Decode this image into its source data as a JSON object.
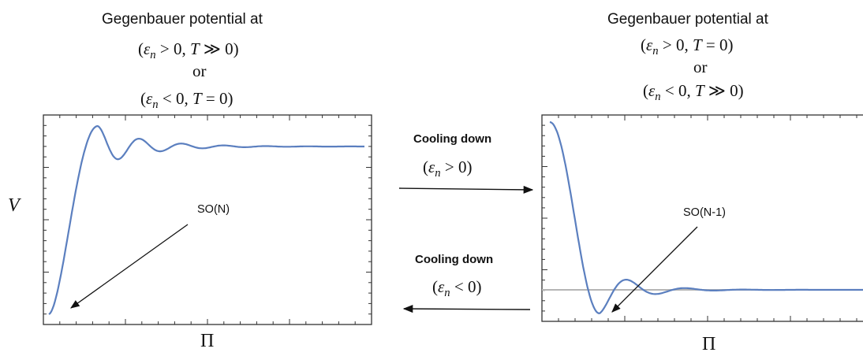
{
  "left_panel": {
    "header": "Gegenbauer potential at",
    "cond_1": "(εn > 0,  T ≫ 0)",
    "or": "or",
    "cond_2": "(εn < 0, T = 0)",
    "y_label": "V",
    "x_label": "Π",
    "annotation": "SO(N)"
  },
  "right_panel": {
    "header": "Gegenbauer potential at",
    "cond_1": "(εn > 0, T = 0)",
    "or": "or",
    "cond_2": "(εn < 0,  T ≫ 0)",
    "x_label": "Π",
    "annotation": "SO(N-1)"
  },
  "middle": {
    "top_label": "Cooling down",
    "top_cond": "(εn > 0)",
    "bottom_label": "Cooling down",
    "bottom_cond": "(εn < 0)"
  },
  "colors": {
    "curve": "#5b7fbf",
    "baseline": "#b5b5b5",
    "frame": "#333333"
  }
}
